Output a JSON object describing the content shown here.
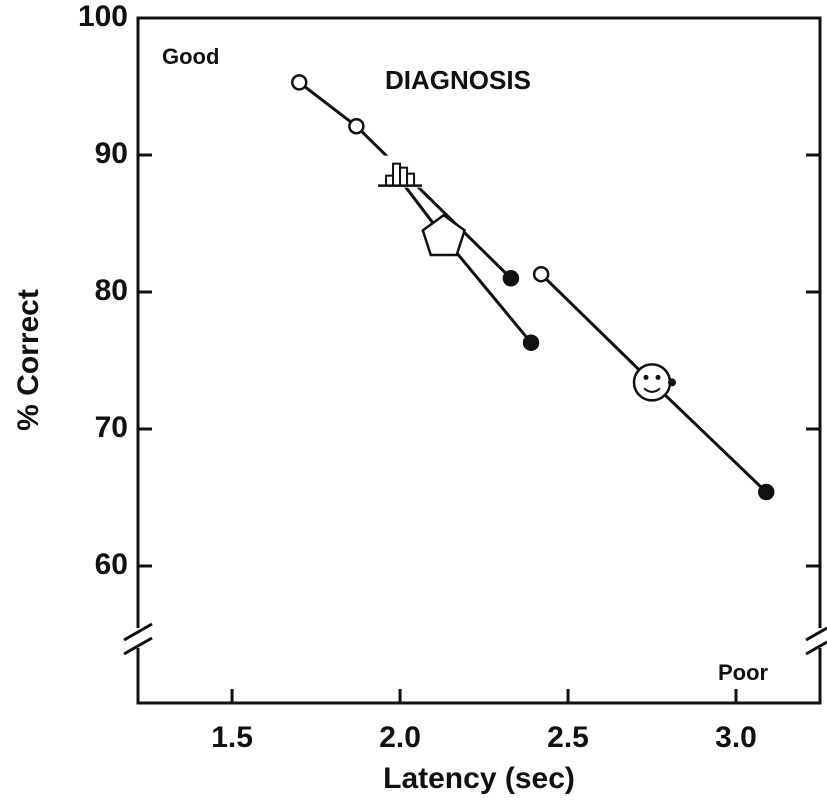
{
  "chart_data": {
    "type": "line",
    "title": "DIAGNOSIS",
    "annotations": [
      "Good",
      "Poor"
    ],
    "x_label": "Latency (sec)",
    "y_label": "% Correct",
    "xlim": [
      1.22,
      3.25
    ],
    "ylim": [
      50,
      100
    ],
    "xticks": [
      1.5,
      {
        "value": 2,
        "label": "2.0"
      },
      2.5,
      {
        "value": 3,
        "label": "3.0"
      }
    ],
    "yticks": [
      60,
      70,
      80,
      90,
      100
    ],
    "color": "#111111",
    "series": [
      {
        "x": [
          1.7,
          1.87,
          2.33
        ],
        "values": [
          95.3,
          92.1,
          81.0
        ],
        "markers": [
          "open-circle",
          "open-circle",
          "filled-circle"
        ]
      },
      {
        "x": [
          2.0,
          2.13,
          2.39
        ],
        "values": [
          88.2,
          84.0,
          76.3
        ],
        "markers": [
          "histogram",
          "pentagon",
          "filled-circle"
        ]
      },
      {
        "x": [
          2.42,
          2.75,
          3.09
        ],
        "values": [
          81.3,
          73.4,
          65.4
        ],
        "markers": [
          "open-circle",
          "face",
          "filled-circle"
        ]
      }
    ]
  }
}
